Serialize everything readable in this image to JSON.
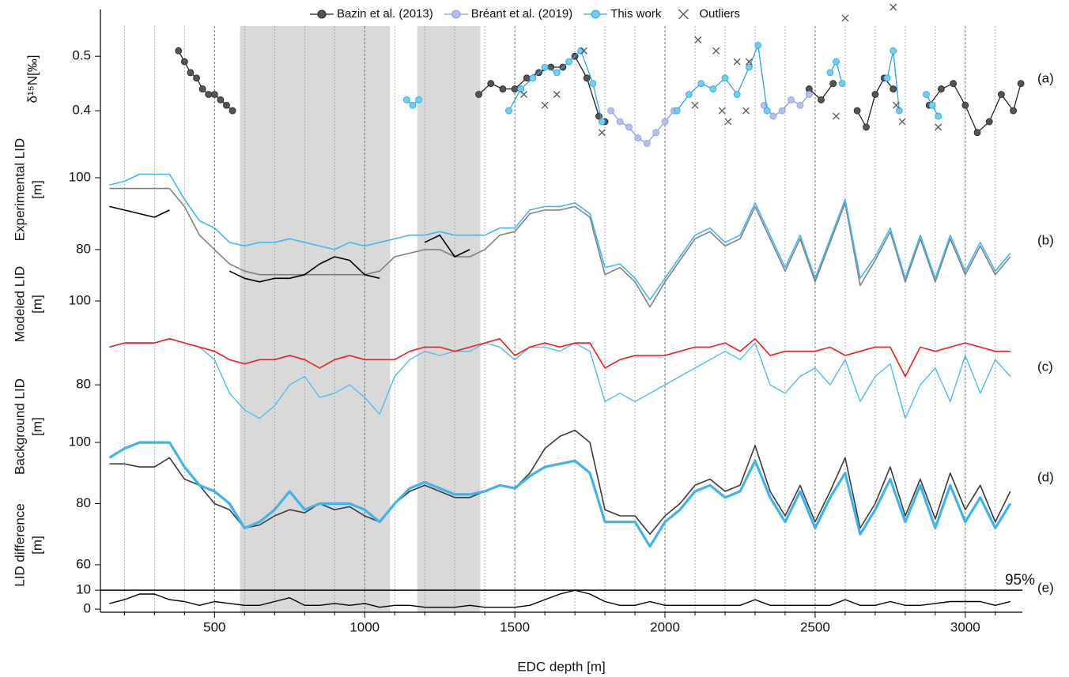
{
  "chart_data": [
    {
      "type": "scatter",
      "ylabel": [
        "δ¹⁵N[‰]"
      ],
      "panel_label": "(a)",
      "ylim": [
        0.306,
        0.596
      ],
      "yticks": [
        0.4,
        0.5
      ],
      "shaded_x_ranges": [
        [
          585,
          1085
        ],
        [
          1175,
          1385
        ]
      ],
      "series": [
        {
          "name": "Bazin et al. (2013)",
          "color": "#555555",
          "stroke": "#222222",
          "marker": "o",
          "line": true,
          "x": [
            380,
            400,
            420,
            440,
            460,
            480,
            500,
            520,
            540,
            560,
            900,
            1380,
            1420,
            1460,
            1500,
            1540,
            1580,
            1620,
            1660,
            1700,
            1740,
            1780,
            1800,
            2000,
            2480,
            2520,
            2560,
            2600,
            2640,
            2670,
            2700,
            2730,
            2760,
            2800,
            2880,
            2920,
            2960,
            3000,
            3040,
            3080,
            3120,
            3160,
            3185
          ],
          "values": [
            0.51,
            0.49,
            0.47,
            0.46,
            0.44,
            0.43,
            0.43,
            0.42,
            0.41,
            0.4,
            null,
            0.43,
            0.45,
            0.44,
            0.44,
            0.46,
            0.47,
            0.48,
            0.48,
            0.5,
            0.46,
            0.39,
            0.38,
            null,
            0.44,
            0.42,
            0.45,
            null,
            0.4,
            0.37,
            0.43,
            0.46,
            0.44,
            null,
            0.41,
            0.44,
            0.45,
            0.41,
            0.36,
            0.38,
            0.43,
            0.4,
            0.45
          ]
        },
        {
          "name": "Bréant et al. (2019)",
          "color": "#b4c0f5",
          "stroke": "#8a9ae8",
          "marker": "o",
          "line": true,
          "x": [
            1820,
            1850,
            1880,
            1910,
            1940,
            1970,
            2000,
            2030,
            2200,
            2330,
            2360,
            2390,
            2420,
            2450,
            2480
          ],
          "values": [
            0.4,
            0.38,
            0.37,
            0.35,
            0.34,
            0.36,
            0.38,
            0.4,
            null,
            0.41,
            0.39,
            0.4,
            0.42,
            0.41,
            0.43
          ]
        },
        {
          "name": "This work",
          "color": "#6dcff6",
          "stroke": "#2aa6de",
          "marker": "o",
          "line": true,
          "x": [
            1140,
            1160,
            1180,
            1300,
            1480,
            1520,
            1560,
            1600,
            1640,
            1680,
            1720,
            1760,
            1790,
            2000,
            2040,
            2080,
            2120,
            2160,
            2200,
            2240,
            2280,
            2310,
            2340,
            2400,
            2550,
            2570,
            2590,
            2650,
            2740,
            2760,
            2780,
            2820,
            2870,
            2890,
            2910
          ],
          "values": [
            0.42,
            0.41,
            0.42,
            null,
            0.4,
            0.44,
            0.46,
            0.48,
            0.47,
            0.49,
            0.51,
            0.45,
            0.38,
            null,
            0.4,
            0.43,
            0.45,
            0.44,
            0.46,
            0.43,
            0.48,
            0.52,
            0.4,
            null,
            0.47,
            0.49,
            0.45,
            null,
            0.46,
            0.51,
            0.4,
            null,
            0.43,
            0.41,
            0.39
          ]
        },
        {
          "name": "Outliers",
          "color": "#555555",
          "stroke": "#555555",
          "marker": "x",
          "line": false,
          "x": [
            1530,
            1600,
            1640,
            1730,
            1790,
            2100,
            2110,
            2170,
            2190,
            2210,
            2240,
            2270,
            2280,
            2570,
            2600,
            2760,
            2770,
            2790,
            2910
          ],
          "values": [
            0.43,
            0.41,
            0.43,
            0.51,
            0.36,
            0.41,
            0.53,
            0.51,
            0.4,
            0.38,
            0.49,
            0.4,
            0.49,
            0.39,
            0.57,
            0.59,
            0.41,
            0.38,
            0.37
          ]
        }
      ]
    },
    {
      "type": "line",
      "ylabel": [
        "Experimental LID",
        "[m]"
      ],
      "panel_label": "(b)",
      "ylim": [
        59.3,
        104.4
      ],
      "yticks": [
        80,
        100
      ],
      "x": [
        150,
        200,
        250,
        300,
        350,
        400,
        450,
        500,
        550,
        600,
        650,
        700,
        750,
        800,
        850,
        900,
        950,
        1000,
        1050,
        1100,
        1150,
        1200,
        1250,
        1300,
        1350,
        1400,
        1450,
        1500,
        1550,
        1600,
        1650,
        1700,
        1750,
        1800,
        1850,
        1900,
        1950,
        2000,
        2050,
        2100,
        2150,
        2200,
        2250,
        2300,
        2350,
        2400,
        2450,
        2500,
        2550,
        2600,
        2650,
        2700,
        2750,
        2800,
        2850,
        2900,
        2950,
        3000,
        3050,
        3100,
        3150
      ],
      "series": [
        {
          "color": "#808080",
          "width": 1.6,
          "values": [
            97,
            97,
            97,
            97,
            97,
            92,
            84,
            80,
            76,
            74,
            73,
            73,
            73,
            73,
            73,
            73,
            73,
            73,
            74,
            78,
            79,
            80,
            80,
            78,
            78,
            80,
            84,
            85,
            90,
            91,
            91,
            92,
            89,
            73,
            75,
            71,
            64,
            71,
            77,
            83,
            85,
            81,
            83,
            92,
            83,
            74,
            83,
            71,
            82,
            93,
            70,
            77,
            85,
            71,
            83,
            71,
            83,
            73,
            81,
            73,
            78
          ]
        },
        {
          "color": "#000000",
          "width": 1.6,
          "values": [
            92,
            91,
            90,
            89,
            91,
            null,
            null,
            null,
            74,
            72,
            71,
            72,
            72,
            73,
            76,
            78,
            77,
            73,
            72,
            null,
            null,
            82,
            84,
            78,
            80,
            null,
            null,
            null,
            null,
            null,
            null,
            null,
            null,
            null,
            null,
            null,
            null,
            null,
            null,
            null,
            null,
            null,
            null,
            null,
            null,
            null,
            null,
            null,
            null,
            null,
            null,
            null,
            null,
            null,
            null,
            null,
            null,
            null,
            null,
            null,
            null
          ]
        },
        {
          "color": "#3fb8f0",
          "width": 1.6,
          "values": [
            98,
            99,
            101,
            101,
            101,
            94,
            88,
            86,
            82,
            81,
            82,
            82,
            83,
            82,
            81,
            80,
            82,
            81,
            82,
            83,
            84,
            84,
            85,
            84,
            84,
            84,
            86,
            86,
            91,
            92,
            92,
            93,
            90,
            75,
            76,
            72,
            66,
            72,
            78,
            84,
            86,
            82,
            84,
            93,
            84,
            75,
            84,
            72,
            83,
            94,
            72,
            78,
            86,
            72,
            84,
            72,
            84,
            74,
            82,
            74,
            79
          ]
        }
      ]
    },
    {
      "type": "line",
      "ylabel": [
        "Modeled LID",
        "[m]"
      ],
      "panel_label": "(c)",
      "ylim": [
        69.1,
        100
      ],
      "yticks": [
        80,
        100
      ],
      "x": [
        150,
        200,
        250,
        300,
        350,
        400,
        450,
        500,
        550,
        600,
        650,
        700,
        750,
        800,
        850,
        900,
        950,
        1000,
        1050,
        1100,
        1150,
        1200,
        1250,
        1300,
        1350,
        1400,
        1450,
        1500,
        1550,
        1600,
        1650,
        1700,
        1750,
        1800,
        1850,
        1900,
        1950,
        2000,
        2050,
        2100,
        2150,
        2200,
        2250,
        2300,
        2350,
        2400,
        2450,
        2500,
        2550,
        2600,
        2650,
        2700,
        2750,
        2800,
        2850,
        2900,
        2950,
        3000,
        3050,
        3100,
        3150
      ],
      "series": [
        {
          "color": "#4dbdf0",
          "width": 1.4,
          "values": [
            89,
            90,
            90,
            90,
            91,
            90,
            89,
            86,
            78,
            74,
            72,
            75,
            80,
            82,
            77,
            78,
            80,
            77,
            73,
            82,
            86,
            88,
            87,
            88,
            88,
            90,
            89,
            86,
            89,
            89,
            88,
            90,
            88,
            76,
            78,
            76,
            78,
            80,
            82,
            84,
            86,
            88,
            86,
            90,
            80,
            78,
            82,
            84,
            80,
            86,
            76,
            82,
            85,
            72,
            80,
            84,
            76,
            87,
            78,
            86,
            82
          ]
        },
        {
          "color": "#ee1c1c",
          "width": 1.6,
          "values": [
            89,
            90,
            90,
            90,
            91,
            90,
            89,
            88,
            86,
            85,
            86,
            86,
            87,
            86,
            84,
            86,
            87,
            86,
            86,
            86,
            88,
            89,
            89,
            88,
            89,
            90,
            91,
            87,
            89,
            90,
            89,
            90,
            90,
            84,
            86,
            87,
            87,
            87,
            88,
            89,
            89,
            90,
            88,
            91,
            87,
            88,
            88,
            88,
            89,
            87,
            88,
            89,
            89,
            82,
            89,
            88,
            89,
            90,
            89,
            88,
            88
          ]
        }
      ]
    },
    {
      "type": "line",
      "ylabel": [
        "Background LID",
        "[m]"
      ],
      "panel_label": "(d)",
      "ylim": [
        56.1,
        103.9
      ],
      "yticks": [
        60,
        80,
        100
      ],
      "x": [
        150,
        200,
        250,
        300,
        350,
        400,
        450,
        500,
        550,
        600,
        650,
        700,
        750,
        800,
        850,
        900,
        950,
        1000,
        1050,
        1100,
        1150,
        1200,
        1250,
        1300,
        1350,
        1400,
        1450,
        1500,
        1550,
        1600,
        1650,
        1700,
        1750,
        1800,
        1850,
        1900,
        1950,
        2000,
        2050,
        2100,
        2150,
        2200,
        2250,
        2300,
        2350,
        2400,
        2450,
        2500,
        2550,
        2600,
        2650,
        2700,
        2750,
        2800,
        2850,
        2900,
        2950,
        3000,
        3050,
        3100,
        3150
      ],
      "series": [
        {
          "color": "#3a3a3a",
          "width": 1.6,
          "values": [
            93,
            93,
            92,
            92,
            95,
            88,
            86,
            80,
            78,
            72,
            73,
            76,
            78,
            77,
            80,
            78,
            79,
            76,
            74,
            80,
            84,
            86,
            84,
            82,
            82,
            84,
            86,
            85,
            90,
            98,
            102,
            104,
            100,
            78,
            76,
            76,
            70,
            76,
            80,
            86,
            88,
            84,
            86,
            99,
            84,
            76,
            86,
            74,
            84,
            95,
            72,
            80,
            92,
            76,
            88,
            75,
            90,
            78,
            86,
            74,
            84
          ]
        },
        {
          "color": "#3cb4ec",
          "width": 3.2,
          "values": [
            95,
            98,
            100,
            100,
            100,
            92,
            86,
            84,
            80,
            72,
            74,
            78,
            84,
            78,
            80,
            80,
            80,
            78,
            74,
            80,
            85,
            87,
            85,
            83,
            83,
            84,
            86,
            85,
            89,
            92,
            93,
            94,
            90,
            74,
            74,
            74,
            66,
            74,
            78,
            84,
            86,
            82,
            84,
            94,
            82,
            74,
            84,
            72,
            82,
            90,
            70,
            78,
            88,
            74,
            86,
            72,
            86,
            74,
            82,
            72,
            80
          ]
        }
      ]
    },
    {
      "type": "line",
      "ylabel": [
        "LID difference",
        "[m]"
      ],
      "panel_label": "(e)",
      "ylim": [
        -0.8,
        13
      ],
      "yticks": [
        0,
        10
      ],
      "threshold": {
        "value": 10,
        "label": "95%"
      },
      "xlabel": "EDC depth [m]",
      "xlim": [
        120,
        3190
      ],
      "xticks": [
        500,
        1000,
        1500,
        2000,
        2500,
        3000
      ],
      "minor_xticks": [
        200,
        300,
        400,
        600,
        700,
        800,
        900,
        1100,
        1200,
        1300,
        1400,
        1600,
        1700,
        1800,
        1900,
        2100,
        2200,
        2300,
        2400,
        2600,
        2700,
        2800,
        2900,
        3100
      ],
      "x": [
        150,
        200,
        250,
        300,
        350,
        400,
        450,
        500,
        550,
        600,
        650,
        700,
        750,
        800,
        850,
        900,
        950,
        1000,
        1050,
        1100,
        1150,
        1200,
        1250,
        1300,
        1350,
        1400,
        1450,
        1500,
        1550,
        1600,
        1650,
        1700,
        1750,
        1800,
        1850,
        1900,
        1950,
        2000,
        2050,
        2100,
        2150,
        2200,
        2250,
        2300,
        2350,
        2400,
        2450,
        2500,
        2550,
        2600,
        2650,
        2700,
        2750,
        2800,
        2850,
        2900,
        2950,
        3000,
        3050,
        3100,
        3150
      ],
      "series": [
        {
          "color": "#000000",
          "width": 1.4,
          "values": [
            3,
            5,
            8,
            8,
            5,
            4,
            2,
            4,
            3,
            2,
            2,
            4,
            6,
            2,
            2,
            3,
            2,
            3,
            1,
            2,
            2,
            1,
            1,
            1,
            2,
            1,
            1,
            1,
            2,
            5,
            8,
            10,
            8,
            4,
            2,
            2,
            4,
            2,
            2,
            2,
            2,
            2,
            2,
            5,
            2,
            2,
            2,
            2,
            2,
            5,
            2,
            2,
            4,
            2,
            2,
            3,
            4,
            4,
            4,
            2,
            4
          ]
        }
      ]
    }
  ]
}
